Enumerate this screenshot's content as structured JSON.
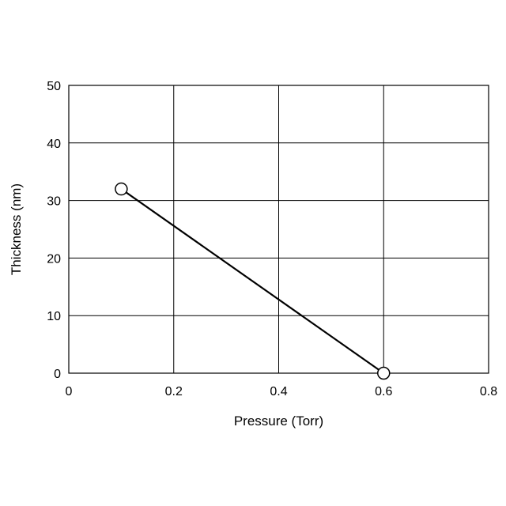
{
  "chart_data": {
    "type": "line",
    "title": "",
    "xlabel": "Pressure (Torr)",
    "ylabel": "Thickness (nm)",
    "xlim": [
      0,
      0.8
    ],
    "ylim": [
      0,
      50
    ],
    "x_ticks": [
      0,
      0.2,
      0.4,
      0.6,
      0.8
    ],
    "x_tick_labels": [
      "0",
      "0.2",
      "0.4",
      "0.6",
      "0.8"
    ],
    "y_ticks": [
      0,
      10,
      20,
      30,
      40,
      50
    ],
    "y_tick_labels": [
      "0",
      "10",
      "20",
      "30",
      "40",
      "50"
    ],
    "grid": true,
    "series": [
      {
        "color": "#000000",
        "marker": "open-circle",
        "points": [
          {
            "x": 0.1,
            "y": 32
          },
          {
            "x": 0.6,
            "y": 0
          }
        ]
      }
    ]
  }
}
